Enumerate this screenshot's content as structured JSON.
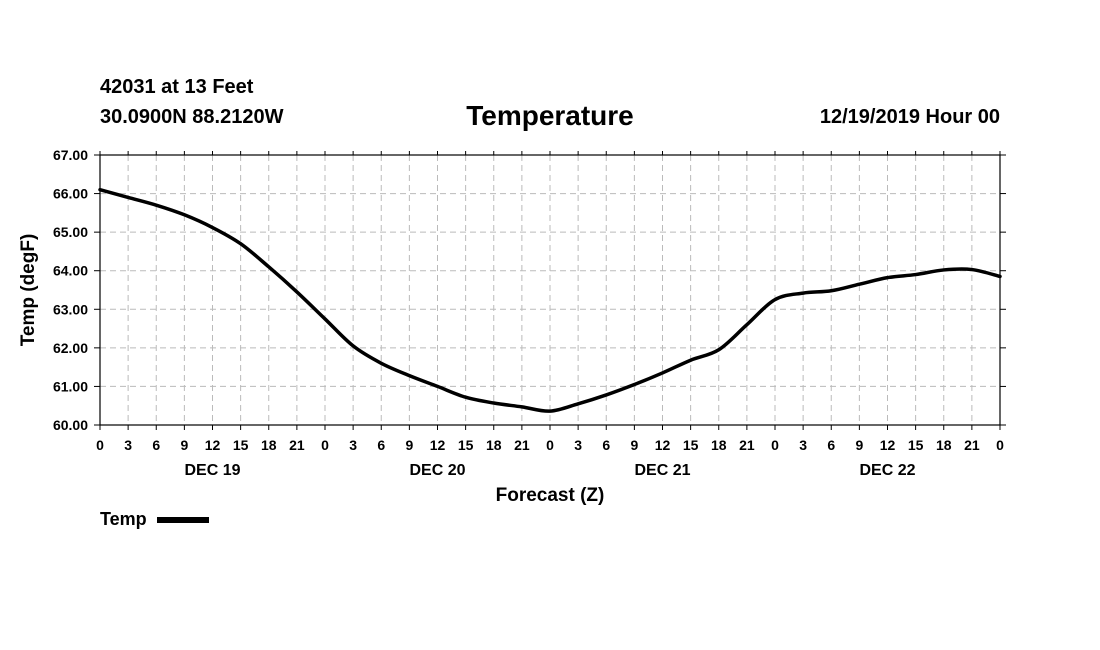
{
  "header": {
    "station": "42031 at 13 Feet",
    "coords": "30.0900N 88.2120W",
    "title": "Temperature",
    "datetime": "12/19/2019 Hour 00"
  },
  "chart_data": {
    "type": "line",
    "title": "Temperature",
    "xlabel": "Forecast (Z)",
    "ylabel": "Temp (degF)",
    "ylim": [
      60,
      67
    ],
    "yticks": [
      "60.00",
      "61.00",
      "62.00",
      "63.00",
      "64.00",
      "65.00",
      "66.00",
      "67.00"
    ],
    "xlim": [
      0,
      96
    ],
    "xticks": [
      0,
      3,
      6,
      9,
      12,
      15,
      18,
      21,
      24,
      27,
      30,
      33,
      36,
      39,
      42,
      45,
      48,
      51,
      54,
      57,
      60,
      63,
      66,
      69,
      72,
      75,
      78,
      81,
      84,
      87,
      90,
      93,
      96
    ],
    "xtick_labels": [
      "0",
      "3",
      "6",
      "9",
      "12",
      "15",
      "18",
      "21",
      "0",
      "3",
      "6",
      "9",
      "12",
      "15",
      "18",
      "21",
      "0",
      "3",
      "6",
      "9",
      "12",
      "15",
      "18",
      "21",
      "0",
      "3",
      "6",
      "9",
      "12",
      "15",
      "18",
      "21",
      "0"
    ],
    "day_labels": [
      {
        "x": 12,
        "label": "DEC 19"
      },
      {
        "x": 36,
        "label": "DEC 20"
      },
      {
        "x": 60,
        "label": "DEC 21"
      },
      {
        "x": 84,
        "label": "DEC 22"
      }
    ],
    "grid": true,
    "legend": "bottom-left",
    "series": [
      {
        "name": "Temp",
        "color": "#000000",
        "x": [
          0,
          3,
          6,
          9,
          12,
          15,
          18,
          21,
          24,
          27,
          30,
          33,
          36,
          39,
          42,
          45,
          48,
          51,
          54,
          57,
          60,
          63,
          66,
          69,
          72,
          75,
          78,
          81,
          84,
          87,
          90,
          93,
          96
        ],
        "values": [
          66.1,
          65.9,
          65.7,
          65.45,
          65.12,
          64.7,
          64.1,
          63.45,
          62.75,
          62.05,
          61.6,
          61.28,
          61.0,
          60.72,
          60.57,
          60.47,
          60.36,
          60.55,
          60.78,
          61.05,
          61.35,
          61.68,
          61.95,
          62.6,
          63.25,
          63.42,
          63.48,
          63.65,
          63.82,
          63.9,
          64.02,
          64.03,
          63.85
        ]
      }
    ]
  }
}
